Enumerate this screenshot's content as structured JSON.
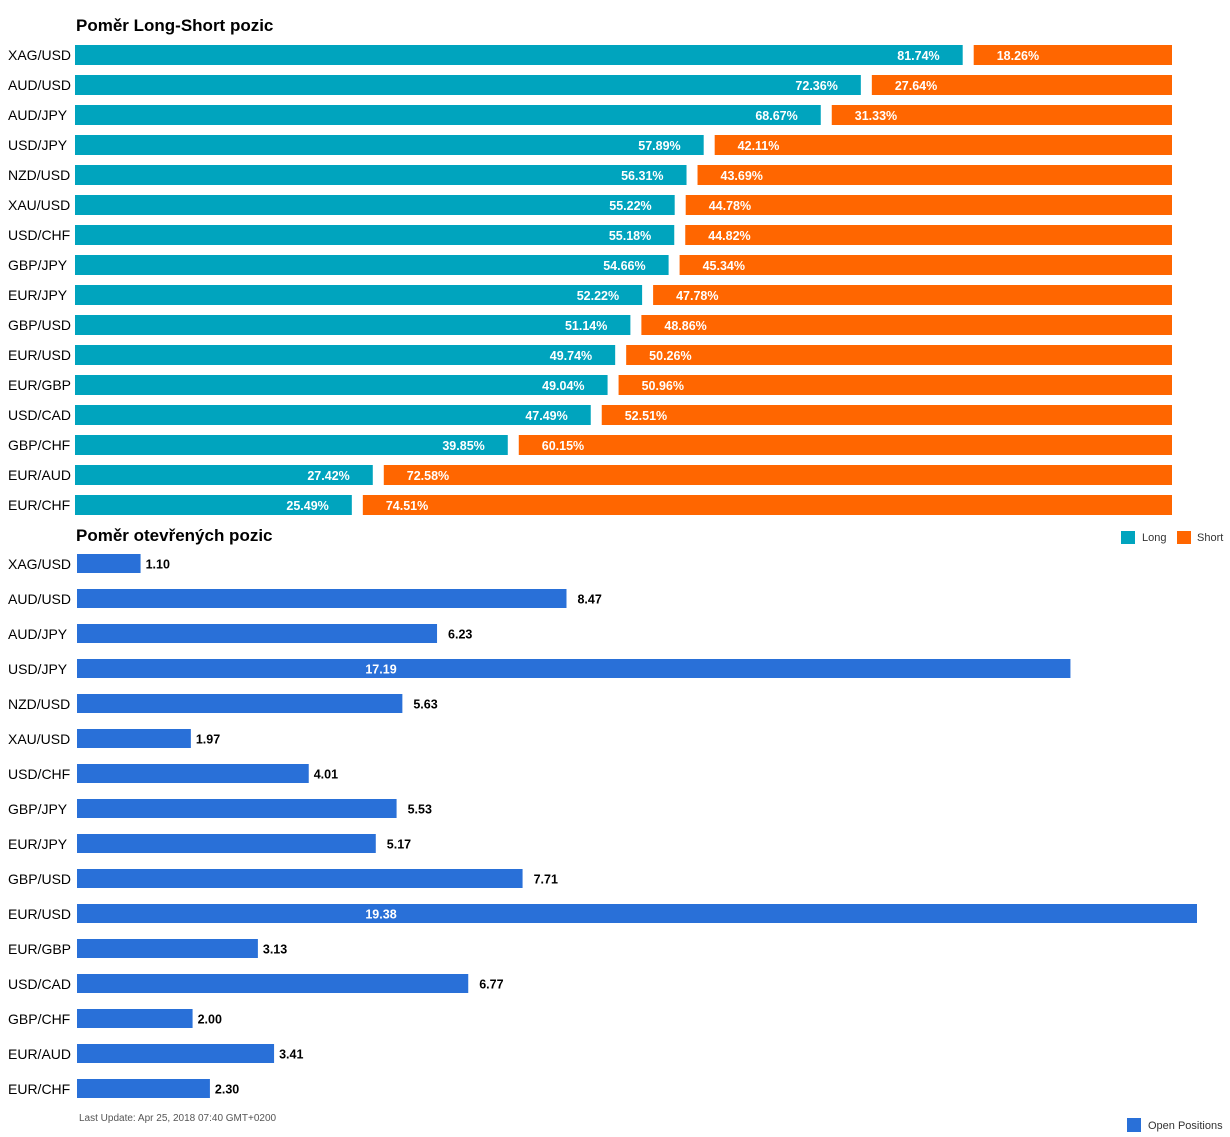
{
  "chart_data": [
    {
      "type": "bar",
      "stacked": true,
      "orientation": "horizontal",
      "title": "Poměr Long-Short pozic",
      "categories": [
        "XAG/USD",
        "AUD/USD",
        "AUD/JPY",
        "USD/JPY",
        "NZD/USD",
        "XAU/USD",
        "USD/CHF",
        "GBP/JPY",
        "EUR/JPY",
        "GBP/USD",
        "EUR/USD",
        "EUR/GBP",
        "USD/CAD",
        "GBP/CHF",
        "EUR/AUD",
        "EUR/CHF"
      ],
      "series": [
        {
          "name": "Long",
          "color": "#00a4be",
          "values": [
            81.74,
            72.36,
            68.67,
            57.89,
            56.31,
            55.22,
            55.18,
            54.66,
            52.22,
            51.14,
            49.74,
            49.04,
            47.49,
            39.85,
            27.42,
            25.49
          ],
          "labels": [
            "81.74%",
            "72.36%",
            "68.67%",
            "57.89%",
            "56.31%",
            "55.22%",
            "55.18%",
            "54.66%",
            "52.22%",
            "51.14%",
            "49.74%",
            "49.04%",
            "47.49%",
            "39.85%",
            "27.42%",
            "25.49%"
          ]
        },
        {
          "name": "Short",
          "color": "#ff6600",
          "values": [
            18.26,
            27.64,
            31.33,
            42.11,
            43.69,
            44.78,
            44.82,
            45.34,
            47.78,
            48.86,
            50.26,
            50.96,
            52.51,
            60.15,
            72.58,
            74.51
          ],
          "labels": [
            "18.26%",
            "27.64%",
            "31.33%",
            "42.11%",
            "43.69%",
            "44.78%",
            "44.82%",
            "45.34%",
            "47.78%",
            "48.86%",
            "50.26%",
            "50.96%",
            "52.51%",
            "60.15%",
            "72.58%",
            "74.51%"
          ]
        }
      ],
      "xlim": [
        0,
        100
      ],
      "grid": false,
      "legend": "right"
    },
    {
      "type": "bar",
      "orientation": "horizontal",
      "title": "Poměr otevřených pozic",
      "categories": [
        "XAG/USD",
        "AUD/USD",
        "AUD/JPY",
        "USD/JPY",
        "NZD/USD",
        "XAU/USD",
        "USD/CHF",
        "GBP/JPY",
        "EUR/JPY",
        "GBP/USD",
        "EUR/USD",
        "EUR/GBP",
        "USD/CAD",
        "GBP/CHF",
        "EUR/AUD",
        "EUR/CHF"
      ],
      "series": [
        {
          "name": "Open Positions",
          "color": "#2970d8",
          "values": [
            1.1,
            8.47,
            6.23,
            17.19,
            5.63,
            1.97,
            4.01,
            5.53,
            5.17,
            7.71,
            19.38,
            3.13,
            6.77,
            2.0,
            3.41,
            2.3
          ],
          "labels": [
            "1.10",
            "8.47",
            "6.23",
            "17.19",
            "5.63",
            "1.97",
            "4.01",
            "5.53",
            "5.17",
            "7.71",
            "19.38",
            "3.13",
            "6.77",
            "2.00",
            "3.41",
            "2.30"
          ]
        }
      ],
      "xlim": [
        0,
        19.38
      ],
      "grid": false,
      "legend": "bottom-right"
    }
  ],
  "footer": {
    "last_update": "Last Update: Apr 25, 2018 07:40 GMT+0200"
  }
}
